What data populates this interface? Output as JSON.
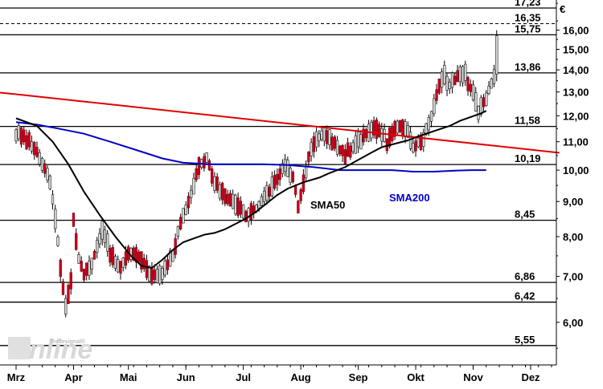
{
  "chart_data": {
    "type": "candlestick",
    "currency": "€",
    "ylim": [
      5.2,
      17.7
    ],
    "y_scale": "log",
    "y_ticks": [
      "6,00",
      "7,00",
      "8,00",
      "9,00",
      "10,00",
      "11,00",
      "12,00",
      "13,00",
      "14,00",
      "15,00",
      "16,00"
    ],
    "y_tick_values": [
      6,
      7,
      8,
      9,
      10,
      11,
      12,
      13,
      14,
      15,
      16
    ],
    "x_ticks": [
      "Mrz",
      "Apr",
      "Mai",
      "Jun",
      "Jul",
      "Aug",
      "Sep",
      "Okt",
      "Nov",
      "Dez"
    ],
    "x_tick_index": [
      0,
      22,
      43,
      65,
      87,
      109,
      131,
      153,
      175,
      197
    ],
    "x_max_index": 208,
    "price_levels": [
      {
        "value": 17.23,
        "label": "17,23",
        "style": "solid"
      },
      {
        "value": 16.35,
        "label": "16,35",
        "style": "dashed"
      },
      {
        "value": 15.75,
        "label": "15,75",
        "style": "solid"
      },
      {
        "value": 13.86,
        "label": "13,86",
        "style": "solid"
      },
      {
        "value": 11.58,
        "label": "11,58",
        "style": "solid"
      },
      {
        "value": 10.19,
        "label": "10,19",
        "style": "solid"
      },
      {
        "value": 8.45,
        "label": "8,45",
        "style": "solid"
      },
      {
        "value": 6.86,
        "label": "6,86",
        "style": "solid"
      },
      {
        "value": 6.42,
        "label": "6,42",
        "style": "solid"
      },
      {
        "value": 5.55,
        "label": "5,55",
        "style": "solid"
      }
    ],
    "trendline": {
      "color": "#e00000",
      "points": [
        [
          0,
          12.9
        ],
        [
          208,
          10.6
        ]
      ]
    },
    "sma50": {
      "name": "SMA50",
      "color": "#000000",
      "points": [
        [
          0,
          11.9
        ],
        [
          8,
          11.6
        ],
        [
          14,
          11.0
        ],
        [
          20,
          10.2
        ],
        [
          26,
          9.3
        ],
        [
          32,
          8.6
        ],
        [
          38,
          8.0
        ],
        [
          44,
          7.5
        ],
        [
          48,
          7.25
        ],
        [
          52,
          7.2
        ],
        [
          56,
          7.4
        ],
        [
          60,
          7.65
        ],
        [
          64,
          7.85
        ],
        [
          68,
          7.95
        ],
        [
          72,
          8.05
        ],
        [
          76,
          8.1
        ],
        [
          80,
          8.2
        ],
        [
          84,
          8.35
        ],
        [
          88,
          8.5
        ],
        [
          92,
          8.7
        ],
        [
          96,
          8.95
        ],
        [
          100,
          9.2
        ],
        [
          104,
          9.4
        ],
        [
          110,
          9.6
        ],
        [
          116,
          9.75
        ],
        [
          120,
          9.9
        ],
        [
          126,
          10.1
        ],
        [
          130,
          10.3
        ],
        [
          136,
          10.6
        ],
        [
          140,
          10.8
        ],
        [
          146,
          10.95
        ],
        [
          150,
          11.05
        ],
        [
          154,
          11.2
        ],
        [
          160,
          11.4
        ],
        [
          166,
          11.6
        ],
        [
          170,
          11.8
        ],
        [
          174,
          11.95
        ],
        [
          178,
          12.1
        ],
        [
          180,
          12.2
        ]
      ]
    },
    "sma200": {
      "name": "SMA200",
      "color": "#0000c8",
      "points": [
        [
          0,
          11.75
        ],
        [
          8,
          11.65
        ],
        [
          16,
          11.5
        ],
        [
          26,
          11.3
        ],
        [
          36,
          11.0
        ],
        [
          46,
          10.7
        ],
        [
          56,
          10.4
        ],
        [
          64,
          10.25
        ],
        [
          74,
          10.2
        ],
        [
          84,
          10.2
        ],
        [
          94,
          10.2
        ],
        [
          104,
          10.17
        ],
        [
          114,
          10.1
        ],
        [
          124,
          10.0
        ],
        [
          134,
          10.0
        ],
        [
          144,
          10.0
        ],
        [
          152,
          9.95
        ],
        [
          160,
          9.95
        ],
        [
          168,
          9.98
        ],
        [
          174,
          10.0
        ],
        [
          180,
          10.0
        ]
      ]
    },
    "price_anchors": [
      [
        0,
        11.3
      ],
      [
        4,
        11.1
      ],
      [
        8,
        10.6
      ],
      [
        11,
        10.1
      ],
      [
        13,
        9.6
      ],
      [
        15,
        8.5
      ],
      [
        17,
        7.2
      ],
      [
        19,
        6.3
      ],
      [
        21,
        6.9
      ],
      [
        22,
        8.4
      ],
      [
        24,
        7.4
      ],
      [
        26,
        7.1
      ],
      [
        29,
        7.3
      ],
      [
        33,
        8.2
      ],
      [
        36,
        7.6
      ],
      [
        40,
        7.2
      ],
      [
        44,
        7.6
      ],
      [
        48,
        7.4
      ],
      [
        52,
        7.0
      ],
      [
        56,
        7.1
      ],
      [
        60,
        7.5
      ],
      [
        63,
        8.4
      ],
      [
        66,
        9.0
      ],
      [
        68,
        9.5
      ],
      [
        70,
        10.1
      ],
      [
        73,
        10.4
      ],
      [
        76,
        9.6
      ],
      [
        80,
        9.2
      ],
      [
        84,
        8.9
      ],
      [
        88,
        8.6
      ],
      [
        92,
        8.8
      ],
      [
        96,
        9.2
      ],
      [
        100,
        9.7
      ],
      [
        103,
        10.2
      ],
      [
        106,
        9.8
      ],
      [
        108,
        8.9
      ],
      [
        110,
        9.6
      ],
      [
        112,
        10.4
      ],
      [
        114,
        10.9
      ],
      [
        118,
        11.4
      ],
      [
        122,
        10.9
      ],
      [
        126,
        10.5
      ],
      [
        130,
        10.9
      ],
      [
        134,
        11.3
      ],
      [
        138,
        11.5
      ],
      [
        142,
        11.0
      ],
      [
        146,
        11.6
      ],
      [
        150,
        11.3
      ],
      [
        152,
        10.8
      ],
      [
        155,
        11.0
      ],
      [
        158,
        11.6
      ],
      [
        161,
        12.9
      ],
      [
        164,
        13.8
      ],
      [
        166,
        13.3
      ],
      [
        169,
        13.6
      ],
      [
        172,
        13.8
      ],
      [
        175,
        12.9
      ],
      [
        177,
        12.2
      ],
      [
        179,
        12.5
      ],
      [
        181,
        13.1
      ],
      [
        183,
        13.6
      ],
      [
        184,
        15.7
      ]
    ],
    "annotations": [
      {
        "text": "SMA50",
        "color": "#000000"
      },
      {
        "text": "SMA200",
        "color": "#0000c8"
      }
    ],
    "watermark": "Tradesignal online"
  }
}
